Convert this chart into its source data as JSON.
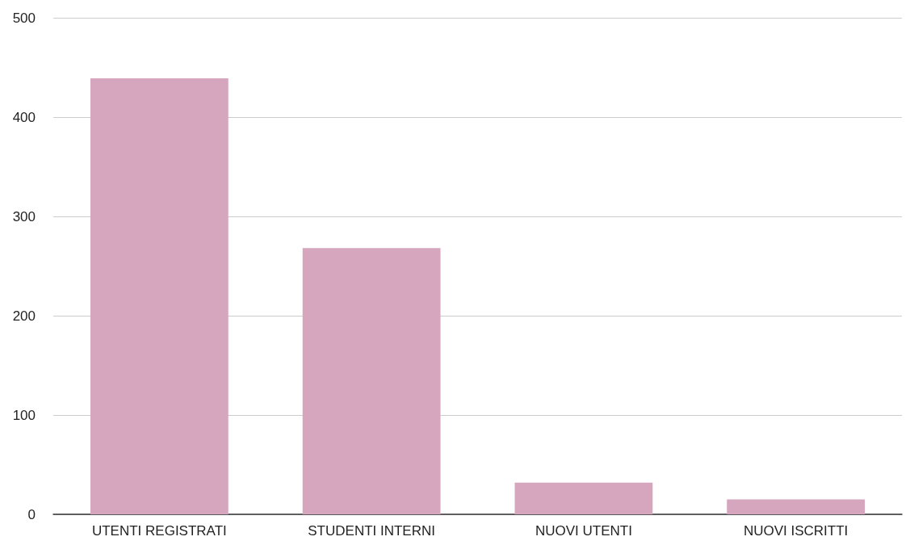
{
  "chart_data": {
    "type": "bar",
    "categories": [
      "UTENTI REGISTRATI",
      "STUDENTI INTERNI",
      "NUOVI UTENTI",
      "NUOVI ISCRITTI"
    ],
    "values": [
      439,
      268,
      32,
      15
    ],
    "color": "#d5a6bd",
    "ylim": [
      0,
      500
    ],
    "yticks": [
      0,
      100,
      200,
      300,
      400,
      500
    ],
    "grid": "y"
  }
}
